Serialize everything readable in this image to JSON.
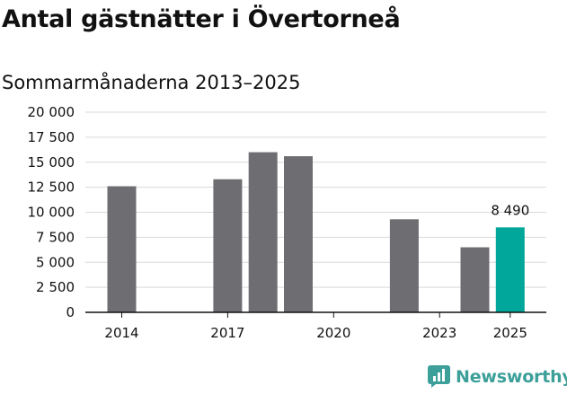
{
  "chart_data": {
    "type": "bar",
    "title": "Antal gästnätter i Övertorneå",
    "subtitle": "Sommarmånaderna 2013–2025",
    "x": [
      2013,
      2014,
      2015,
      2016,
      2017,
      2018,
      2019,
      2020,
      2021,
      2022,
      2023,
      2024,
      2025
    ],
    "values": [
      null,
      12600,
      null,
      null,
      13300,
      16000,
      15600,
      null,
      null,
      9300,
      null,
      6500,
      8490
    ],
    "xticks": [
      "2014",
      "2017",
      "2020",
      "2023",
      "2025"
    ],
    "yticks": [
      "0",
      "2 500",
      "5 000",
      "7 500",
      "10 000",
      "12 500",
      "15 000",
      "17 500",
      "20 000"
    ],
    "ylim": [
      0,
      20000
    ],
    "grid": true,
    "highlight": {
      "x": 2025,
      "label": "8 490"
    },
    "colors": {
      "bar": "#6e6d72",
      "highlight": "#00a79a",
      "grid": "#d9d9d9",
      "axis": "#111111"
    }
  },
  "branding": {
    "name": "Newsworthy",
    "icon": "newsworthy-logo-icon",
    "color": "#3c9f99"
  }
}
